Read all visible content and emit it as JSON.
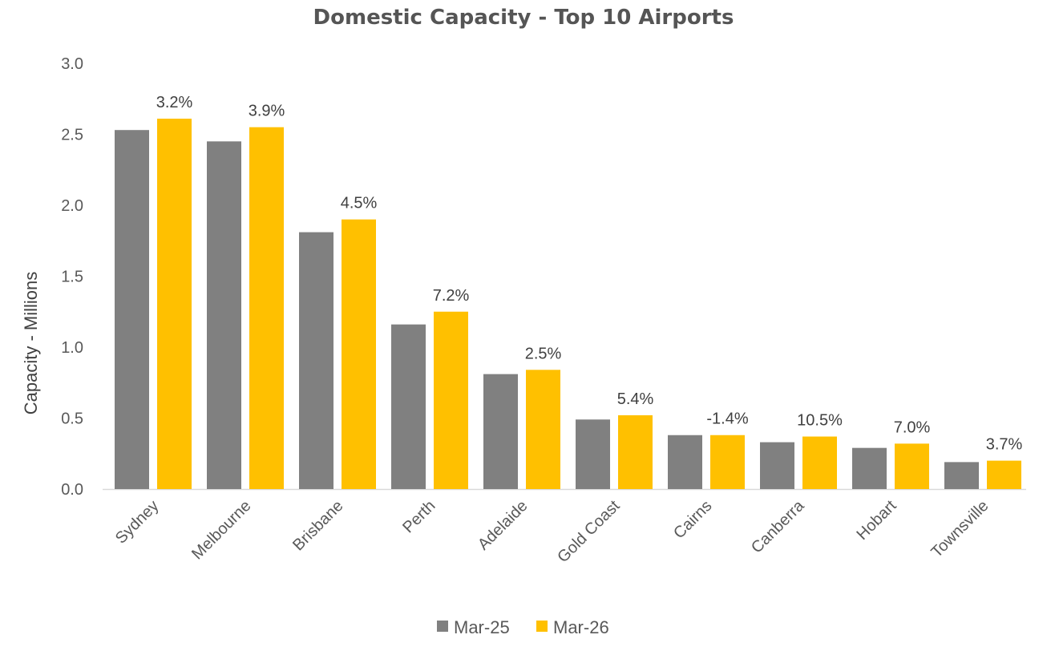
{
  "chart_data": {
    "type": "bar",
    "title": "Domestic Capacity - Top 10 Airports",
    "xlabel": "",
    "ylabel": "Capacity - Millions",
    "ylim": [
      0,
      3.0
    ],
    "yticks": [
      "0.0",
      "0.5",
      "1.0",
      "1.5",
      "2.0",
      "2.5",
      "3.0"
    ],
    "grid": false,
    "legend_position": "bottom",
    "categories": [
      "Sydney",
      "Melbourne",
      "Brisbane",
      "Perth",
      "Adelaide",
      "Gold Coast",
      "Cairns",
      "Canberra",
      "Hobart",
      "Townsville"
    ],
    "series": [
      {
        "name": "Mar-25",
        "color": "#808080",
        "values": [
          2.53,
          2.45,
          1.81,
          1.16,
          0.81,
          0.49,
          0.38,
          0.33,
          0.29,
          0.19
        ]
      },
      {
        "name": "Mar-26",
        "color": "#FFC000",
        "values": [
          2.61,
          2.55,
          1.9,
          1.25,
          0.84,
          0.52,
          0.38,
          0.37,
          0.32,
          0.2
        ]
      }
    ],
    "data_labels": [
      "3.2%",
      "3.9%",
      "4.5%",
      "7.2%",
      "2.5%",
      "5.4%",
      "-1.4%",
      "10.5%",
      "7.0%",
      "3.7%"
    ]
  }
}
